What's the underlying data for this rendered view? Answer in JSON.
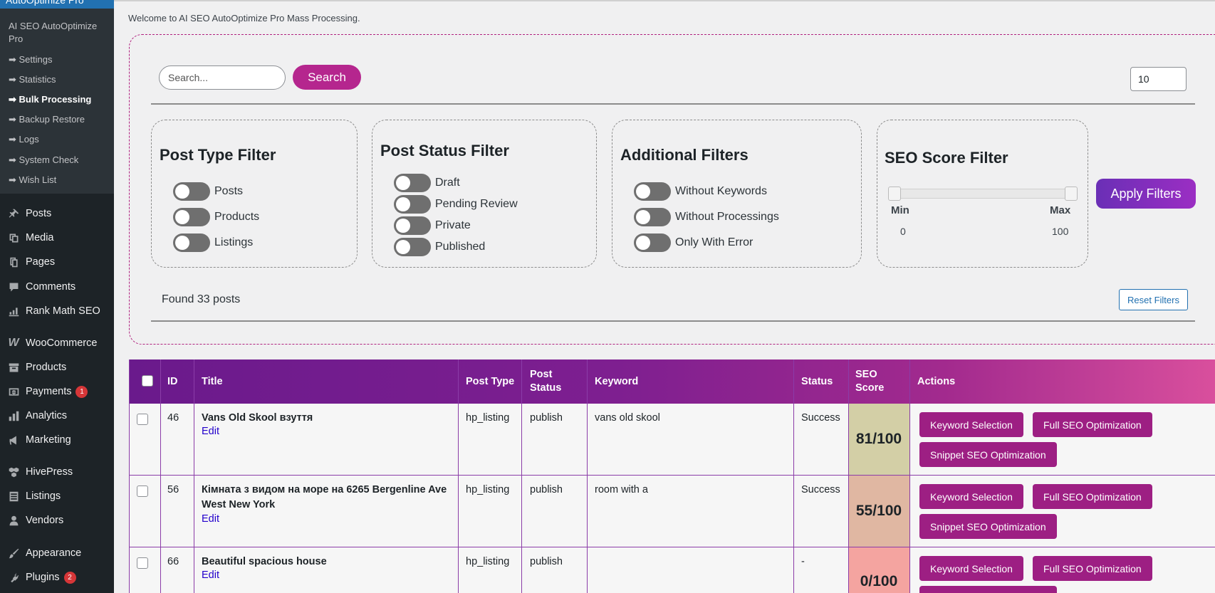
{
  "sidebar": {
    "top_label": "AutoOptimize Pro",
    "plugin_name": "AI SEO AutoOptimize Pro",
    "submenu": [
      {
        "label": "➡ Settings"
      },
      {
        "label": "➡ Statistics"
      },
      {
        "label": "➡ Bulk Processing"
      },
      {
        "label": "➡ Backup Restore"
      },
      {
        "label": "➡ Logs"
      },
      {
        "label": "➡ System Check"
      },
      {
        "label": "➡ Wish List"
      }
    ],
    "menu": [
      {
        "label": "Posts",
        "icon": "pushpin-icon"
      },
      {
        "label": "Media",
        "icon": "media-icon"
      },
      {
        "label": "Pages",
        "icon": "pages-icon"
      },
      {
        "label": "Comments",
        "icon": "comment-icon"
      },
      {
        "label": "Rank Math SEO",
        "icon": "chart-icon"
      },
      {
        "label": "WooCommerce",
        "icon": "woo-icon"
      },
      {
        "label": "Products",
        "icon": "archive-icon"
      },
      {
        "label": "Payments",
        "icon": "dollar-icon",
        "badge": "1"
      },
      {
        "label": "Analytics",
        "icon": "bar-chart-icon"
      },
      {
        "label": "Marketing",
        "icon": "megaphone-icon"
      },
      {
        "label": "HivePress",
        "icon": "hive-icon"
      },
      {
        "label": "Listings",
        "icon": "list-icon"
      },
      {
        "label": "Vendors",
        "icon": "user-icon"
      },
      {
        "label": "Appearance",
        "icon": "brush-icon"
      },
      {
        "label": "Plugins",
        "icon": "plugin-icon",
        "badge": "2"
      }
    ]
  },
  "header": {
    "welcome": "Welcome to AI SEO AutoOptimize Pro Mass Processing."
  },
  "search": {
    "placeholder": "Search...",
    "button_label": "Search",
    "per_page_value": "10"
  },
  "filters": {
    "post_type": {
      "title": "Post Type Filter",
      "options": [
        "Posts",
        "Products",
        "Listings"
      ]
    },
    "post_status": {
      "title": "Post Status Filter",
      "options": [
        "Draft",
        "Pending Review",
        "Private",
        "Published"
      ]
    },
    "additional": {
      "title": "Additional Filters",
      "options": [
        "Without Keywords",
        "Without Processings",
        "Only With Error"
      ]
    },
    "seo_score": {
      "title": "SEO Score Filter",
      "min_label": "Min",
      "max_label": "Max",
      "min_value": "0",
      "max_value": "100"
    },
    "apply_label": "Apply Filters",
    "reset_label": "Reset Filters",
    "found_text": "Found 33 posts"
  },
  "table": {
    "columns": [
      "ID",
      "Title",
      "Post Type",
      "Post Status",
      "Keyword",
      "Status",
      "SEO Score",
      "Actions"
    ],
    "rows": [
      {
        "id": "46",
        "title": "Vans Old Skool взуття",
        "edit": "Edit",
        "post_type": "hp_listing",
        "post_status": "publish",
        "keyword": "vans old skool",
        "status": "Success",
        "score": "81/100",
        "score_color": "#d3cfa6"
      },
      {
        "id": "56",
        "title": "Кімната з видом на море на 6265 Bergenline Ave West New York",
        "edit": "Edit",
        "post_type": "hp_listing",
        "post_status": "publish",
        "keyword": "room with a",
        "status": "Success",
        "score": "55/100",
        "score_color": "#e0b7a2"
      },
      {
        "id": "66",
        "title": "Beautiful spacious house",
        "edit": "Edit",
        "post_type": "hp_listing",
        "post_status": "publish",
        "keyword": "",
        "status": "-",
        "score": "0/100",
        "score_color": "#f4a4a0"
      }
    ],
    "actions": {
      "keyword_selection": "Keyword Selection",
      "full_seo": "Full SEO Optimization",
      "snippet_seo": "Snippet SEO Optimization"
    }
  }
}
